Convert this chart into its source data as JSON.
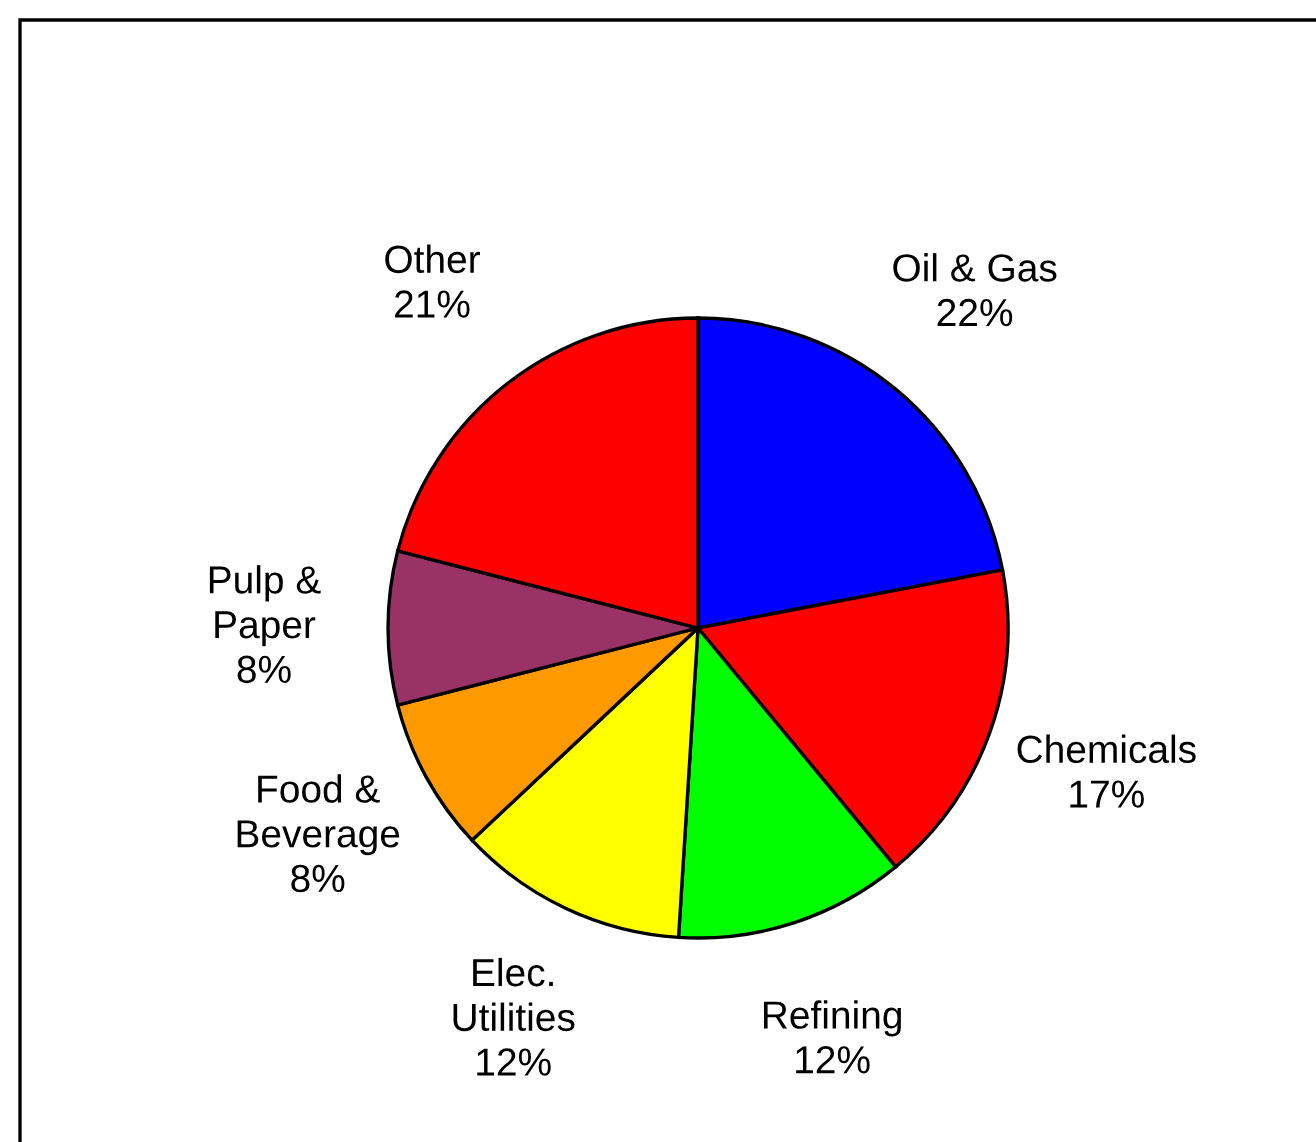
{
  "chart_data": {
    "type": "pie",
    "categories": [
      "Oil & Gas",
      "Chemicals",
      "Refining",
      "Elec.\nUtilities",
      "Food &\nBeverage",
      "Pulp &\nPaper",
      "Other"
    ],
    "values": [
      22,
      17,
      12,
      12,
      8,
      8,
      21
    ],
    "value_labels": [
      "22%",
      "17%",
      "12%",
      "12%",
      "8%",
      "8%",
      "21%"
    ],
    "colors": [
      "#0000ff",
      "#ff0000",
      "#00ff00",
      "#ffff00",
      "#ff9900",
      "#993366",
      "#ff0000"
    ]
  }
}
